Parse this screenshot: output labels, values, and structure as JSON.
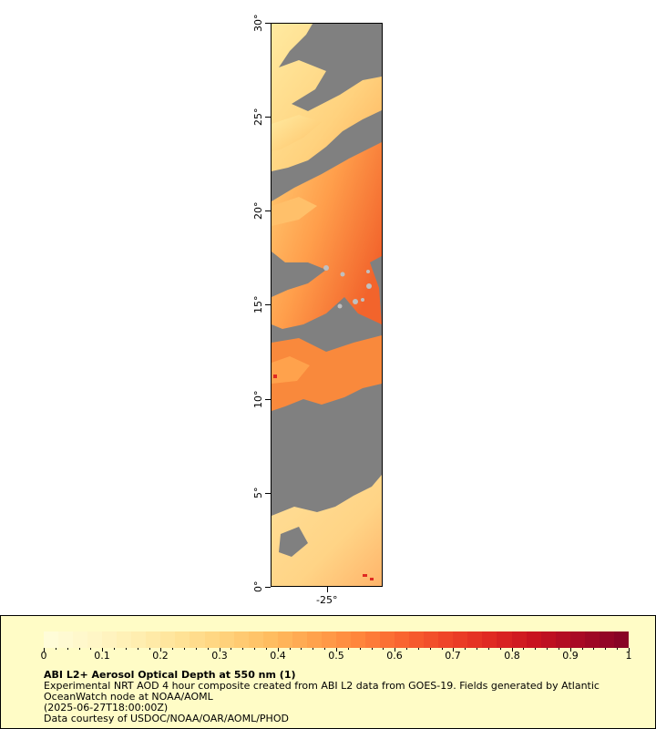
{
  "map": {
    "lat_range": [
      0,
      30
    ],
    "lon_center": -25,
    "missing_color": "#808080",
    "y_ticks": [
      "0°",
      "5°",
      "10°",
      "15°",
      "20°",
      "25°",
      "30°"
    ],
    "x_ticks": [
      "-25°"
    ]
  },
  "legend": {
    "tick_labels": [
      "0",
      "0.1",
      "0.2",
      "0.3",
      "0.4",
      "0.5",
      "0.6",
      "0.7",
      "0.8",
      "0.9",
      "1"
    ],
    "colors": [
      "#fffcd8",
      "#fff6c6",
      "#ffeeb0",
      "#ffe295",
      "#ffd17a",
      "#ffbd60",
      "#ffa24c",
      "#ff863c",
      "#f96530",
      "#ef4528",
      "#e02a22",
      "#c8131f",
      "#a90a25",
      "#880426"
    ],
    "title": "ABI L2+ Aerosol Optical Depth at 550 nm (1)",
    "line1": "Experimental NRT AOD 4 hour composite created from ABI L2 data from GOES-19. Fields generated by Atlantic",
    "line2": "OceanWatch node at NOAA/AOML",
    "line3": "(2025-06-27T18:00:00Z)",
    "line4": "Data courtesy of USDOC/NOAA/OAR/AOML/PHOD"
  }
}
